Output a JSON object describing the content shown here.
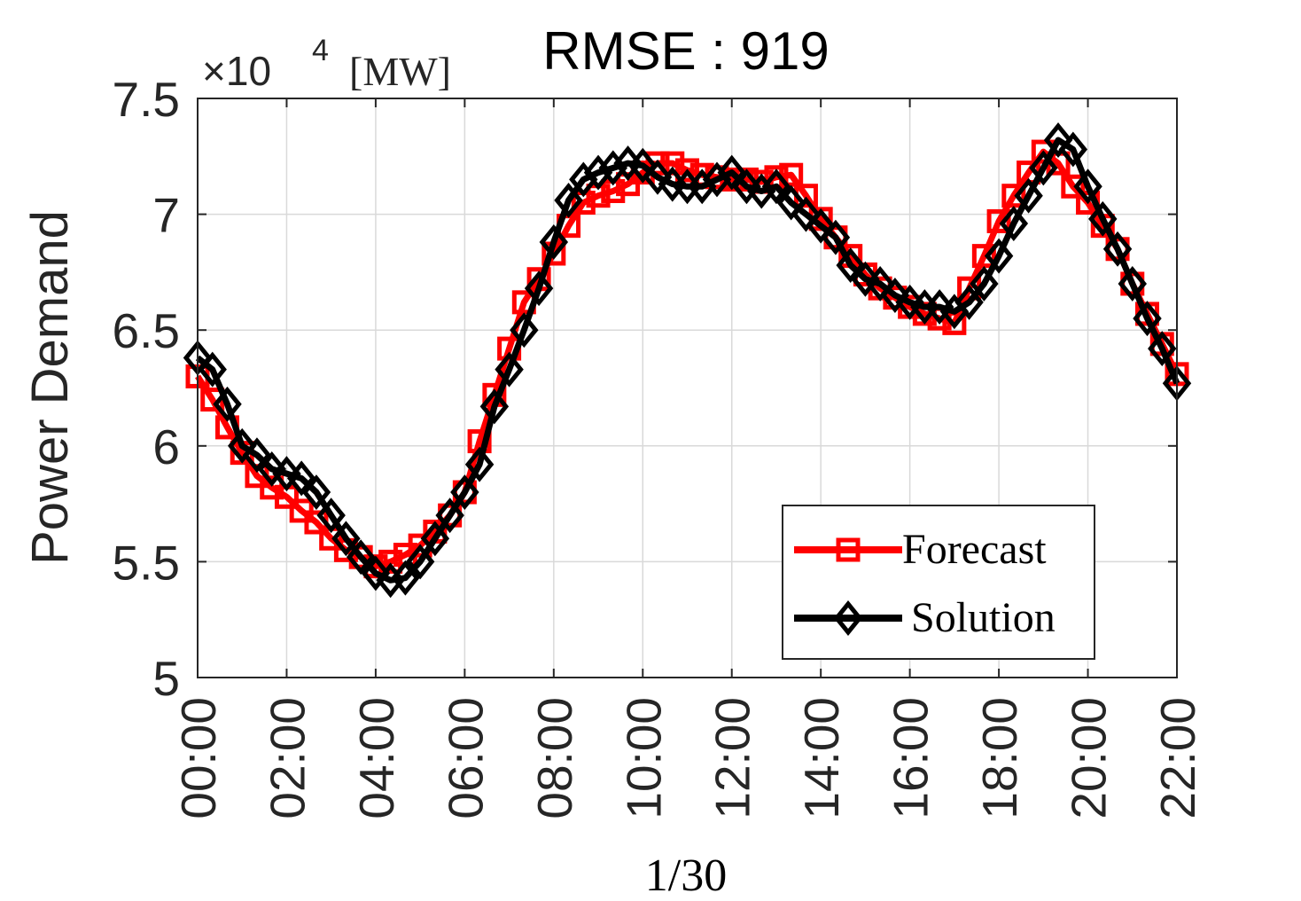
{
  "chart_data": {
    "type": "line",
    "title": "RMSE : 919",
    "ylabel": "Power Demand",
    "xlabel": "1/30",
    "y_multiplier": {
      "base": "×10",
      "exponent": "4",
      "unit": "[MW]"
    },
    "ylim": [
      5.0,
      7.5
    ],
    "xlim": [
      0,
      22
    ],
    "x_ticks": [
      0,
      2,
      4,
      6,
      8,
      10,
      12,
      14,
      16,
      18,
      20,
      22
    ],
    "x_tick_labels": [
      "00:00",
      "02:00",
      "04:00",
      "06:00",
      "08:00",
      "10:00",
      "12:00",
      "14:00",
      "16:00",
      "18:00",
      "20:00",
      "22:00"
    ],
    "y_ticks": [
      5.0,
      5.5,
      6.0,
      6.5,
      7.0,
      7.5
    ],
    "y_tick_labels": [
      "5",
      "5.5",
      "6",
      "6.5",
      "7",
      "7.5"
    ],
    "grid": true,
    "legend_position": "bottom-right",
    "x": [
      0.0,
      0.333,
      0.667,
      1.0,
      1.333,
      1.667,
      2.0,
      2.333,
      2.667,
      3.0,
      3.333,
      3.667,
      4.0,
      4.333,
      4.667,
      5.0,
      5.333,
      5.667,
      6.0,
      6.333,
      6.667,
      7.0,
      7.333,
      7.667,
      8.0,
      8.333,
      8.667,
      9.0,
      9.333,
      9.667,
      10.0,
      10.333,
      10.667,
      11.0,
      11.333,
      11.667,
      12.0,
      12.333,
      12.667,
      13.0,
      13.333,
      13.667,
      14.0,
      14.333,
      14.667,
      15.0,
      15.333,
      15.667,
      16.0,
      16.333,
      16.667,
      17.0,
      17.333,
      17.667,
      18.0,
      18.333,
      18.667,
      19.0,
      19.333,
      19.667,
      20.0,
      20.333,
      20.667,
      21.0,
      21.333,
      21.667,
      22.0
    ],
    "series": [
      {
        "name": "Forecast",
        "color": "#ff0000",
        "marker": "square",
        "values": [
          6.3,
          6.2,
          6.08,
          5.97,
          5.87,
          5.82,
          5.78,
          5.72,
          5.67,
          5.6,
          5.55,
          5.52,
          5.48,
          5.5,
          5.53,
          5.57,
          5.63,
          5.7,
          5.8,
          6.02,
          6.22,
          6.42,
          6.62,
          6.72,
          6.83,
          6.95,
          7.05,
          7.08,
          7.1,
          7.13,
          7.18,
          7.22,
          7.22,
          7.19,
          7.17,
          7.16,
          7.15,
          7.15,
          7.14,
          7.16,
          7.17,
          7.08,
          6.98,
          6.9,
          6.82,
          6.74,
          6.68,
          6.64,
          6.6,
          6.57,
          6.55,
          6.53,
          6.68,
          6.82,
          6.97,
          7.08,
          7.18,
          7.27,
          7.22,
          7.12,
          7.05,
          6.95,
          6.85,
          6.7,
          6.57,
          6.44,
          6.31
        ]
      },
      {
        "name": "Solution",
        "color": "#000000",
        "marker": "diamond",
        "values": [
          6.38,
          6.33,
          6.18,
          6.0,
          5.96,
          5.9,
          5.88,
          5.86,
          5.8,
          5.7,
          5.6,
          5.52,
          5.45,
          5.42,
          5.43,
          5.5,
          5.6,
          5.7,
          5.8,
          5.92,
          6.17,
          6.33,
          6.5,
          6.68,
          6.88,
          7.06,
          7.15,
          7.18,
          7.2,
          7.22,
          7.21,
          7.16,
          7.13,
          7.12,
          7.12,
          7.15,
          7.18,
          7.12,
          7.1,
          7.12,
          7.05,
          7.0,
          6.95,
          6.9,
          6.78,
          6.72,
          6.7,
          6.65,
          6.62,
          6.6,
          6.6,
          6.58,
          6.62,
          6.7,
          6.82,
          6.96,
          7.08,
          7.2,
          7.32,
          7.28,
          7.12,
          6.98,
          6.85,
          6.7,
          6.55,
          6.42,
          6.27
        ]
      }
    ]
  }
}
